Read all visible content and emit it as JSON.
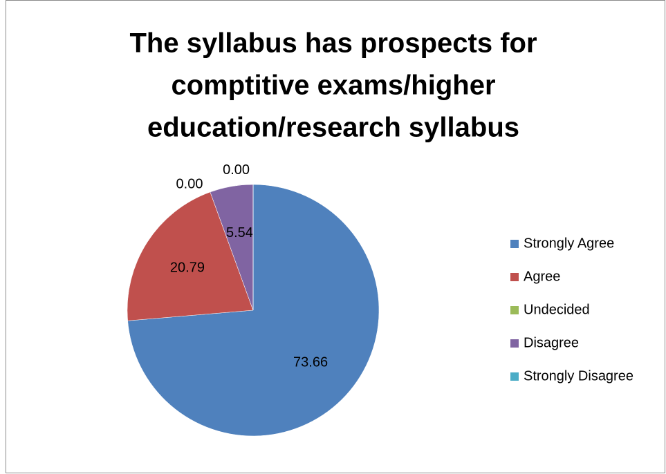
{
  "chart_data": {
    "type": "pie",
    "title": [
      "The syllabus has prospects for",
      "comptitive exams/higher",
      "education/research syllabus"
    ],
    "categories": [
      "Strongly Agree",
      "Agree",
      "Undecided",
      "Disagree",
      "Strongly Disagree"
    ],
    "values": [
      73.66,
      20.79,
      0,
      5.54,
      0
    ],
    "value_labels": [
      "73.66",
      "20.79",
      "0.00",
      "5.54",
      "0.00"
    ],
    "colors": [
      "#4f81bd",
      "#c0504d",
      "#9bbb59",
      "#8064a2",
      "#4bacc6"
    ],
    "legend": "right"
  }
}
